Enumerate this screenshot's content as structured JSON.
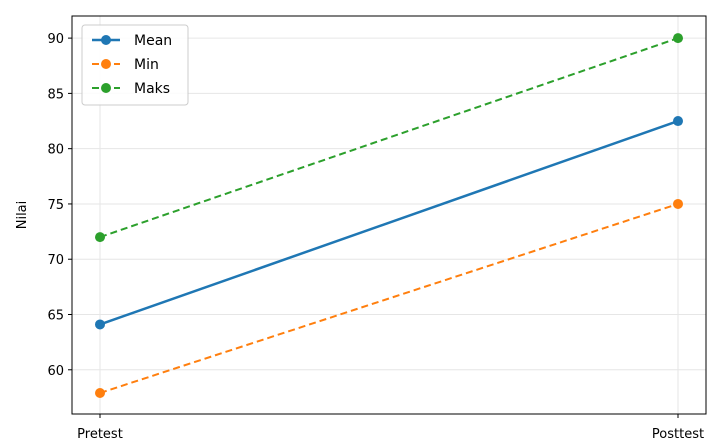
{
  "chart_data": {
    "type": "line",
    "title": "",
    "xlabel": "",
    "ylabel": "Nilai",
    "categories": [
      "Pretest",
      "Posttest"
    ],
    "ylim": [
      56,
      92
    ],
    "yticks": [
      60,
      65,
      70,
      75,
      80,
      85,
      90
    ],
    "grid": true,
    "legend_position": "top-left",
    "series": [
      {
        "name": "Mean",
        "values": [
          64.1,
          82.5
        ],
        "color": "#1f77b4",
        "linestyle": "solid"
      },
      {
        "name": "Min",
        "values": [
          57.9,
          75.0
        ],
        "color": "#ff7f0e",
        "linestyle": "dashed"
      },
      {
        "name": "Maks",
        "values": [
          72.0,
          90.0
        ],
        "color": "#2ca02c",
        "linestyle": "dashed"
      }
    ]
  }
}
